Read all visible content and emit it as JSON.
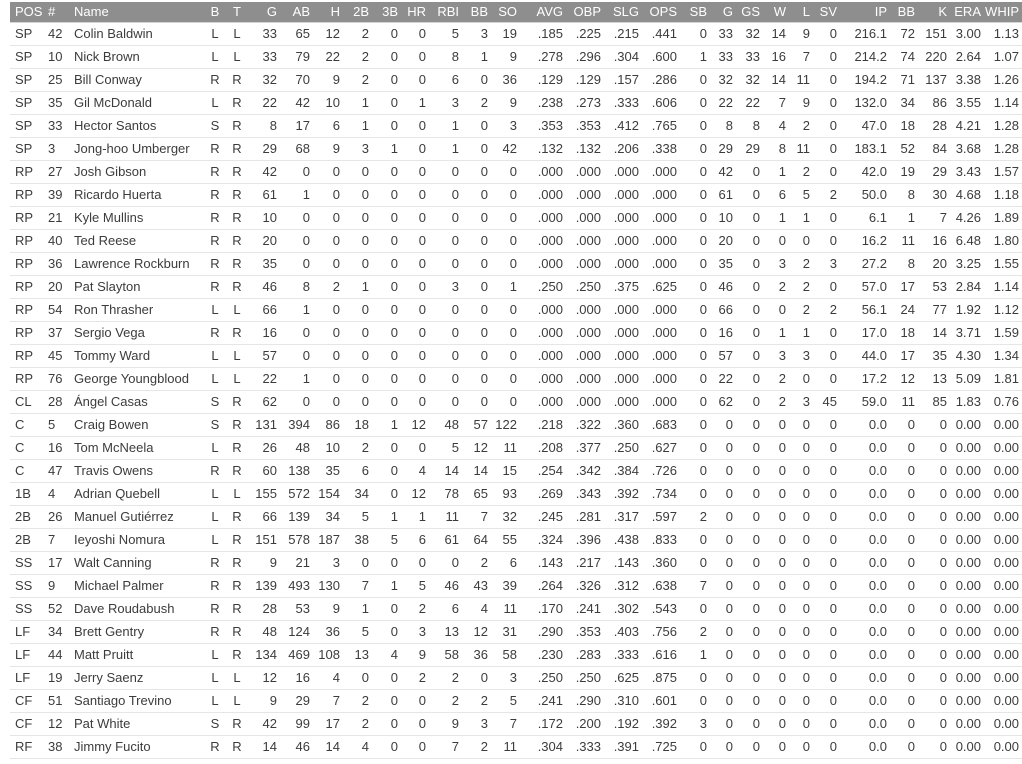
{
  "app": {
    "name": "baseball-roster-stats-screen"
  },
  "colors": {
    "header_bg": "#8e8e8e",
    "header_text": "#ffffff",
    "body_text": "#3c3c3c",
    "row_border": "#e6e6e6",
    "header_border": "#d4d4d4",
    "page_bg": "#ffffff"
  },
  "table": {
    "columns": [
      {
        "key": "pos",
        "label": "POS",
        "align": "left"
      },
      {
        "key": "num",
        "label": "#",
        "align": "left"
      },
      {
        "key": "name",
        "label": "Name",
        "align": "left"
      },
      {
        "key": "b",
        "label": "B",
        "align": "center"
      },
      {
        "key": "t",
        "label": "T",
        "align": "center"
      },
      {
        "key": "g",
        "label": "G",
        "align": "right"
      },
      {
        "key": "ab",
        "label": "AB",
        "align": "right"
      },
      {
        "key": "h",
        "label": "H",
        "align": "right"
      },
      {
        "key": "2b",
        "label": "2B",
        "align": "right"
      },
      {
        "key": "3b",
        "label": "3B",
        "align": "right"
      },
      {
        "key": "hr",
        "label": "HR",
        "align": "right"
      },
      {
        "key": "rbi",
        "label": "RBI",
        "align": "right"
      },
      {
        "key": "bb",
        "label": "BB",
        "align": "right"
      },
      {
        "key": "so",
        "label": "SO",
        "align": "right"
      },
      {
        "key": "avg",
        "label": "AVG",
        "align": "right"
      },
      {
        "key": "obp",
        "label": "OBP",
        "align": "right"
      },
      {
        "key": "slg",
        "label": "SLG",
        "align": "right"
      },
      {
        "key": "ops",
        "label": "OPS",
        "align": "right"
      },
      {
        "key": "sb",
        "label": "SB",
        "align": "right"
      },
      {
        "key": "g-pitch",
        "label": "G",
        "align": "right"
      },
      {
        "key": "gs",
        "label": "GS",
        "align": "right"
      },
      {
        "key": "w",
        "label": "W",
        "align": "right"
      },
      {
        "key": "l",
        "label": "L",
        "align": "right"
      },
      {
        "key": "sv",
        "label": "SV",
        "align": "right"
      },
      {
        "key": "ip",
        "label": "IP",
        "align": "right"
      },
      {
        "key": "bb-pitch",
        "label": "BB",
        "align": "right"
      },
      {
        "key": "k",
        "label": "K",
        "align": "right"
      },
      {
        "key": "era",
        "label": "ERA",
        "align": "right"
      },
      {
        "key": "whip",
        "label": "WHIP",
        "align": "right"
      }
    ],
    "rows": [
      [
        "SP",
        "42",
        "Colin Baldwin",
        "L",
        "L",
        "33",
        "65",
        "12",
        "2",
        "0",
        "0",
        "5",
        "3",
        "19",
        ".185",
        ".225",
        ".215",
        ".441",
        "0",
        "33",
        "32",
        "14",
        "9",
        "0",
        "216.1",
        "72",
        "151",
        "3.00",
        "1.13"
      ],
      [
        "SP",
        "10",
        "Nick Brown",
        "L",
        "L",
        "33",
        "79",
        "22",
        "2",
        "0",
        "0",
        "8",
        "1",
        "9",
        ".278",
        ".296",
        ".304",
        ".600",
        "1",
        "33",
        "33",
        "16",
        "7",
        "0",
        "214.2",
        "74",
        "220",
        "2.64",
        "1.07"
      ],
      [
        "SP",
        "25",
        "Bill Conway",
        "R",
        "R",
        "32",
        "70",
        "9",
        "2",
        "0",
        "0",
        "6",
        "0",
        "36",
        ".129",
        ".129",
        ".157",
        ".286",
        "0",
        "32",
        "32",
        "14",
        "11",
        "0",
        "194.2",
        "71",
        "137",
        "3.38",
        "1.26"
      ],
      [
        "SP",
        "35",
        "Gil McDonald",
        "L",
        "R",
        "22",
        "42",
        "10",
        "1",
        "0",
        "1",
        "3",
        "2",
        "9",
        ".238",
        ".273",
        ".333",
        ".606",
        "0",
        "22",
        "22",
        "7",
        "9",
        "0",
        "132.0",
        "34",
        "86",
        "3.55",
        "1.14"
      ],
      [
        "SP",
        "33",
        "Hector Santos",
        "S",
        "R",
        "8",
        "17",
        "6",
        "1",
        "0",
        "0",
        "1",
        "0",
        "3",
        ".353",
        ".353",
        ".412",
        ".765",
        "0",
        "8",
        "8",
        "4",
        "2",
        "0",
        "47.0",
        "18",
        "28",
        "4.21",
        "1.28"
      ],
      [
        "SP",
        "3",
        "Jong-hoo Umberger",
        "R",
        "R",
        "29",
        "68",
        "9",
        "3",
        "1",
        "0",
        "1",
        "0",
        "42",
        ".132",
        ".132",
        ".206",
        ".338",
        "0",
        "29",
        "29",
        "8",
        "11",
        "0",
        "183.1",
        "52",
        "84",
        "3.68",
        "1.28"
      ],
      [
        "RP",
        "27",
        "Josh Gibson",
        "R",
        "R",
        "42",
        "0",
        "0",
        "0",
        "0",
        "0",
        "0",
        "0",
        "0",
        ".000",
        ".000",
        ".000",
        ".000",
        "0",
        "42",
        "0",
        "1",
        "2",
        "0",
        "42.0",
        "19",
        "29",
        "3.43",
        "1.57"
      ],
      [
        "RP",
        "39",
        "Ricardo Huerta",
        "R",
        "R",
        "61",
        "1",
        "0",
        "0",
        "0",
        "0",
        "0",
        "0",
        "0",
        ".000",
        ".000",
        ".000",
        ".000",
        "0",
        "61",
        "0",
        "6",
        "5",
        "2",
        "50.0",
        "8",
        "30",
        "4.68",
        "1.18"
      ],
      [
        "RP",
        "21",
        "Kyle Mullins",
        "R",
        "R",
        "10",
        "0",
        "0",
        "0",
        "0",
        "0",
        "0",
        "0",
        "0",
        ".000",
        ".000",
        ".000",
        ".000",
        "0",
        "10",
        "0",
        "1",
        "1",
        "0",
        "6.1",
        "1",
        "7",
        "4.26",
        "1.89"
      ],
      [
        "RP",
        "40",
        "Ted Reese",
        "R",
        "R",
        "20",
        "0",
        "0",
        "0",
        "0",
        "0",
        "0",
        "0",
        "0",
        ".000",
        ".000",
        ".000",
        ".000",
        "0",
        "20",
        "0",
        "0",
        "0",
        "0",
        "16.2",
        "11",
        "16",
        "6.48",
        "1.80"
      ],
      [
        "RP",
        "36",
        "Lawrence Rockburn",
        "R",
        "R",
        "35",
        "0",
        "0",
        "0",
        "0",
        "0",
        "0",
        "0",
        "0",
        ".000",
        ".000",
        ".000",
        ".000",
        "0",
        "35",
        "0",
        "3",
        "2",
        "3",
        "27.2",
        "8",
        "20",
        "3.25",
        "1.55"
      ],
      [
        "RP",
        "20",
        "Pat Slayton",
        "R",
        "R",
        "46",
        "8",
        "2",
        "1",
        "0",
        "0",
        "3",
        "0",
        "1",
        ".250",
        ".250",
        ".375",
        ".625",
        "0",
        "46",
        "0",
        "2",
        "2",
        "0",
        "57.0",
        "17",
        "53",
        "2.84",
        "1.14"
      ],
      [
        "RP",
        "54",
        "Ron Thrasher",
        "L",
        "L",
        "66",
        "1",
        "0",
        "0",
        "0",
        "0",
        "0",
        "0",
        "0",
        ".000",
        ".000",
        ".000",
        ".000",
        "0",
        "66",
        "0",
        "0",
        "2",
        "2",
        "56.1",
        "24",
        "77",
        "1.92",
        "1.12"
      ],
      [
        "RP",
        "37",
        "Sergio Vega",
        "R",
        "R",
        "16",
        "0",
        "0",
        "0",
        "0",
        "0",
        "0",
        "0",
        "0",
        ".000",
        ".000",
        ".000",
        ".000",
        "0",
        "16",
        "0",
        "1",
        "1",
        "0",
        "17.0",
        "18",
        "14",
        "3.71",
        "1.59"
      ],
      [
        "RP",
        "45",
        "Tommy Ward",
        "L",
        "L",
        "57",
        "0",
        "0",
        "0",
        "0",
        "0",
        "0",
        "0",
        "0",
        ".000",
        ".000",
        ".000",
        ".000",
        "0",
        "57",
        "0",
        "3",
        "3",
        "0",
        "44.0",
        "17",
        "35",
        "4.30",
        "1.34"
      ],
      [
        "RP",
        "76",
        "George Youngblood",
        "L",
        "L",
        "22",
        "1",
        "0",
        "0",
        "0",
        "0",
        "0",
        "0",
        "0",
        ".000",
        ".000",
        ".000",
        ".000",
        "0",
        "22",
        "0",
        "2",
        "0",
        "0",
        "17.2",
        "12",
        "13",
        "5.09",
        "1.81"
      ],
      [
        "CL",
        "28",
        "Ángel Casas",
        "S",
        "R",
        "62",
        "0",
        "0",
        "0",
        "0",
        "0",
        "0",
        "0",
        "0",
        ".000",
        ".000",
        ".000",
        ".000",
        "0",
        "62",
        "0",
        "2",
        "3",
        "45",
        "59.0",
        "11",
        "85",
        "1.83",
        "0.76"
      ],
      [
        "C",
        "5",
        "Craig Bowen",
        "S",
        "R",
        "131",
        "394",
        "86",
        "18",
        "1",
        "12",
        "48",
        "57",
        "122",
        ".218",
        ".322",
        ".360",
        ".683",
        "0",
        "0",
        "0",
        "0",
        "0",
        "0",
        "0.0",
        "0",
        "0",
        "0.00",
        "0.00"
      ],
      [
        "C",
        "16",
        "Tom McNeela",
        "L",
        "R",
        "26",
        "48",
        "10",
        "2",
        "0",
        "0",
        "5",
        "12",
        "11",
        ".208",
        ".377",
        ".250",
        ".627",
        "0",
        "0",
        "0",
        "0",
        "0",
        "0",
        "0.0",
        "0",
        "0",
        "0.00",
        "0.00"
      ],
      [
        "C",
        "47",
        "Travis Owens",
        "R",
        "R",
        "60",
        "138",
        "35",
        "6",
        "0",
        "4",
        "14",
        "14",
        "15",
        ".254",
        ".342",
        ".384",
        ".726",
        "0",
        "0",
        "0",
        "0",
        "0",
        "0",
        "0.0",
        "0",
        "0",
        "0.00",
        "0.00"
      ],
      [
        "1B",
        "4",
        "Adrian Quebell",
        "L",
        "L",
        "155",
        "572",
        "154",
        "34",
        "0",
        "12",
        "78",
        "65",
        "93",
        ".269",
        ".343",
        ".392",
        ".734",
        "0",
        "0",
        "0",
        "0",
        "0",
        "0",
        "0.0",
        "0",
        "0",
        "0.00",
        "0.00"
      ],
      [
        "2B",
        "26",
        "Manuel Gutiérrez",
        "L",
        "R",
        "66",
        "139",
        "34",
        "5",
        "1",
        "1",
        "11",
        "7",
        "32",
        ".245",
        ".281",
        ".317",
        ".597",
        "2",
        "0",
        "0",
        "0",
        "0",
        "0",
        "0.0",
        "0",
        "0",
        "0.00",
        "0.00"
      ],
      [
        "2B",
        "7",
        "Ieyoshi Nomura",
        "L",
        "R",
        "151",
        "578",
        "187",
        "38",
        "5",
        "6",
        "61",
        "64",
        "55",
        ".324",
        ".396",
        ".438",
        ".833",
        "0",
        "0",
        "0",
        "0",
        "0",
        "0",
        "0.0",
        "0",
        "0",
        "0.00",
        "0.00"
      ],
      [
        "SS",
        "17",
        "Walt Canning",
        "R",
        "R",
        "9",
        "21",
        "3",
        "0",
        "0",
        "0",
        "0",
        "2",
        "6",
        ".143",
        ".217",
        ".143",
        ".360",
        "0",
        "0",
        "0",
        "0",
        "0",
        "0",
        "0.0",
        "0",
        "0",
        "0.00",
        "0.00"
      ],
      [
        "SS",
        "9",
        "Michael Palmer",
        "R",
        "R",
        "139",
        "493",
        "130",
        "7",
        "1",
        "5",
        "46",
        "43",
        "39",
        ".264",
        ".326",
        ".312",
        ".638",
        "7",
        "0",
        "0",
        "0",
        "0",
        "0",
        "0.0",
        "0",
        "0",
        "0.00",
        "0.00"
      ],
      [
        "SS",
        "52",
        "Dave Roudabush",
        "R",
        "R",
        "28",
        "53",
        "9",
        "1",
        "0",
        "2",
        "6",
        "4",
        "11",
        ".170",
        ".241",
        ".302",
        ".543",
        "0",
        "0",
        "0",
        "0",
        "0",
        "0",
        "0.0",
        "0",
        "0",
        "0.00",
        "0.00"
      ],
      [
        "LF",
        "34",
        "Brett Gentry",
        "R",
        "R",
        "48",
        "124",
        "36",
        "5",
        "0",
        "3",
        "13",
        "12",
        "31",
        ".290",
        ".353",
        ".403",
        ".756",
        "2",
        "0",
        "0",
        "0",
        "0",
        "0",
        "0.0",
        "0",
        "0",
        "0.00",
        "0.00"
      ],
      [
        "LF",
        "44",
        "Matt Pruitt",
        "L",
        "R",
        "134",
        "469",
        "108",
        "13",
        "4",
        "9",
        "58",
        "36",
        "58",
        ".230",
        ".283",
        ".333",
        ".616",
        "1",
        "0",
        "0",
        "0",
        "0",
        "0",
        "0.0",
        "0",
        "0",
        "0.00",
        "0.00"
      ],
      [
        "LF",
        "19",
        "Jerry Saenz",
        "L",
        "L",
        "12",
        "16",
        "4",
        "0",
        "0",
        "2",
        "2",
        "0",
        "3",
        ".250",
        ".250",
        ".625",
        ".875",
        "0",
        "0",
        "0",
        "0",
        "0",
        "0",
        "0.0",
        "0",
        "0",
        "0.00",
        "0.00"
      ],
      [
        "CF",
        "51",
        "Santiago Trevino",
        "L",
        "L",
        "9",
        "29",
        "7",
        "2",
        "0",
        "0",
        "2",
        "2",
        "5",
        ".241",
        ".290",
        ".310",
        ".601",
        "0",
        "0",
        "0",
        "0",
        "0",
        "0",
        "0.0",
        "0",
        "0",
        "0.00",
        "0.00"
      ],
      [
        "CF",
        "12",
        "Pat White",
        "S",
        "R",
        "42",
        "99",
        "17",
        "2",
        "0",
        "0",
        "9",
        "3",
        "7",
        ".172",
        ".200",
        ".192",
        ".392",
        "3",
        "0",
        "0",
        "0",
        "0",
        "0",
        "0.0",
        "0",
        "0",
        "0.00",
        "0.00"
      ],
      [
        "RF",
        "38",
        "Jimmy Fucito",
        "R",
        "R",
        "14",
        "46",
        "14",
        "4",
        "0",
        "0",
        "7",
        "2",
        "11",
        ".304",
        ".333",
        ".391",
        ".725",
        "0",
        "0",
        "0",
        "0",
        "0",
        "0",
        "0.0",
        "0",
        "0",
        "0.00",
        "0.00"
      ]
    ]
  }
}
